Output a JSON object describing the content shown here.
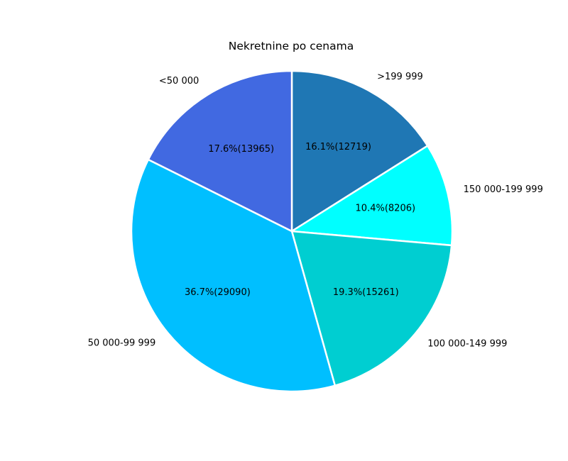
{
  "chart_data": {
    "type": "pie",
    "title": "Nekretnine po cenama",
    "slices": [
      {
        "label": ">199 999",
        "value": 12719,
        "percent_label": "16.1%(12719)",
        "color": "#1f77b4"
      },
      {
        "label": "150 000-199 999",
        "value": 8206,
        "percent_label": "10.4%(8206)",
        "color": "#00ffff"
      },
      {
        "label": "100 000-149 999",
        "value": 15261,
        "percent_label": "19.3%(15261)",
        "color": "#00ced1"
      },
      {
        "label": "50 000-99 999",
        "value": 29090,
        "percent_label": "36.7%(29090)",
        "color": "#00bfff"
      },
      {
        "label": "<50 000",
        "value": 13965,
        "percent_label": "17.6%(13965)",
        "color": "#4169e1"
      }
    ],
    "start_angle_deg": 90,
    "direction": "clockwise",
    "edge_color": "#ffffff"
  }
}
